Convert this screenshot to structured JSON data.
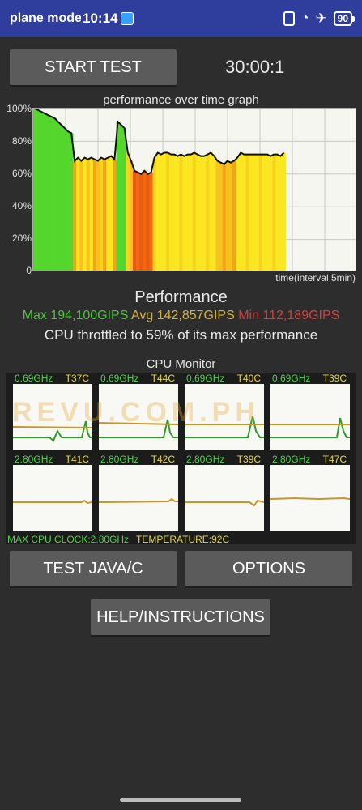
{
  "status_bar": {
    "left_text": "plane mode",
    "time": "10:14",
    "battery": "90"
  },
  "controls": {
    "start_test_label": "START TEST",
    "timer": "30:00:1",
    "test_java_label": "TEST JAVA/C",
    "options_label": "OPTIONS",
    "help_label": "HELP/INSTRUCTIONS"
  },
  "graph": {
    "title": "performance over time graph",
    "y_ticks": [
      "100%",
      "80%",
      "60%",
      "40%",
      "20%",
      "0"
    ],
    "x_label": "time(interval 5min)"
  },
  "performance": {
    "title": "Performance",
    "max": "Max 194,100GIPS",
    "avg": "Avg 142,857GIPS",
    "min": "Min 112,189GIPS",
    "throttle_text": "CPU throttled to 59% of its max performance"
  },
  "cpu_monitor": {
    "title": "CPU Monitor",
    "cores": [
      {
        "freq": "0.69GHz",
        "temp": "T37C"
      },
      {
        "freq": "0.69GHz",
        "temp": "T44C"
      },
      {
        "freq": "0.69GHz",
        "temp": "T40C"
      },
      {
        "freq": "0.69GHz",
        "temp": "T39C"
      },
      {
        "freq": "2.80GHz",
        "temp": "T41C"
      },
      {
        "freq": "2.80GHz",
        "temp": "T42C"
      },
      {
        "freq": "2.80GHz",
        "temp": "T39C"
      },
      {
        "freq": "2.80GHz",
        "temp": "T47C"
      }
    ],
    "max_clock": "MAX CPU CLOCK:2.80GHz",
    "temperature": "TEMPERATURE:92C"
  },
  "watermark": "REVU.COM.PH",
  "colors": {
    "status_bar": "#2f3d9c",
    "background": "#2d2d2d",
    "button": "#5b5b5b",
    "green_line": "#2f9a2a",
    "temp_line": "#c9962a"
  },
  "chart_data": {
    "type": "bar",
    "ylim": [
      0,
      100
    ],
    "values": [
      100,
      99,
      98,
      97,
      96,
      95,
      94,
      92,
      90,
      88,
      86,
      85,
      68,
      70,
      68,
      70,
      69,
      70,
      69,
      68,
      70,
      69,
      70,
      71,
      69,
      92,
      90,
      88,
      73,
      68,
      62,
      61,
      60,
      62,
      60,
      61,
      70,
      73,
      72,
      73,
      73,
      72,
      72,
      71,
      72,
      71,
      72,
      72,
      73,
      72,
      71,
      71,
      72,
      73,
      71,
      68,
      67,
      66,
      68,
      67,
      68,
      70,
      73,
      72,
      72,
      72,
      72,
      72,
      72,
      72,
      72,
      71,
      72,
      72,
      71,
      73
    ]
  }
}
